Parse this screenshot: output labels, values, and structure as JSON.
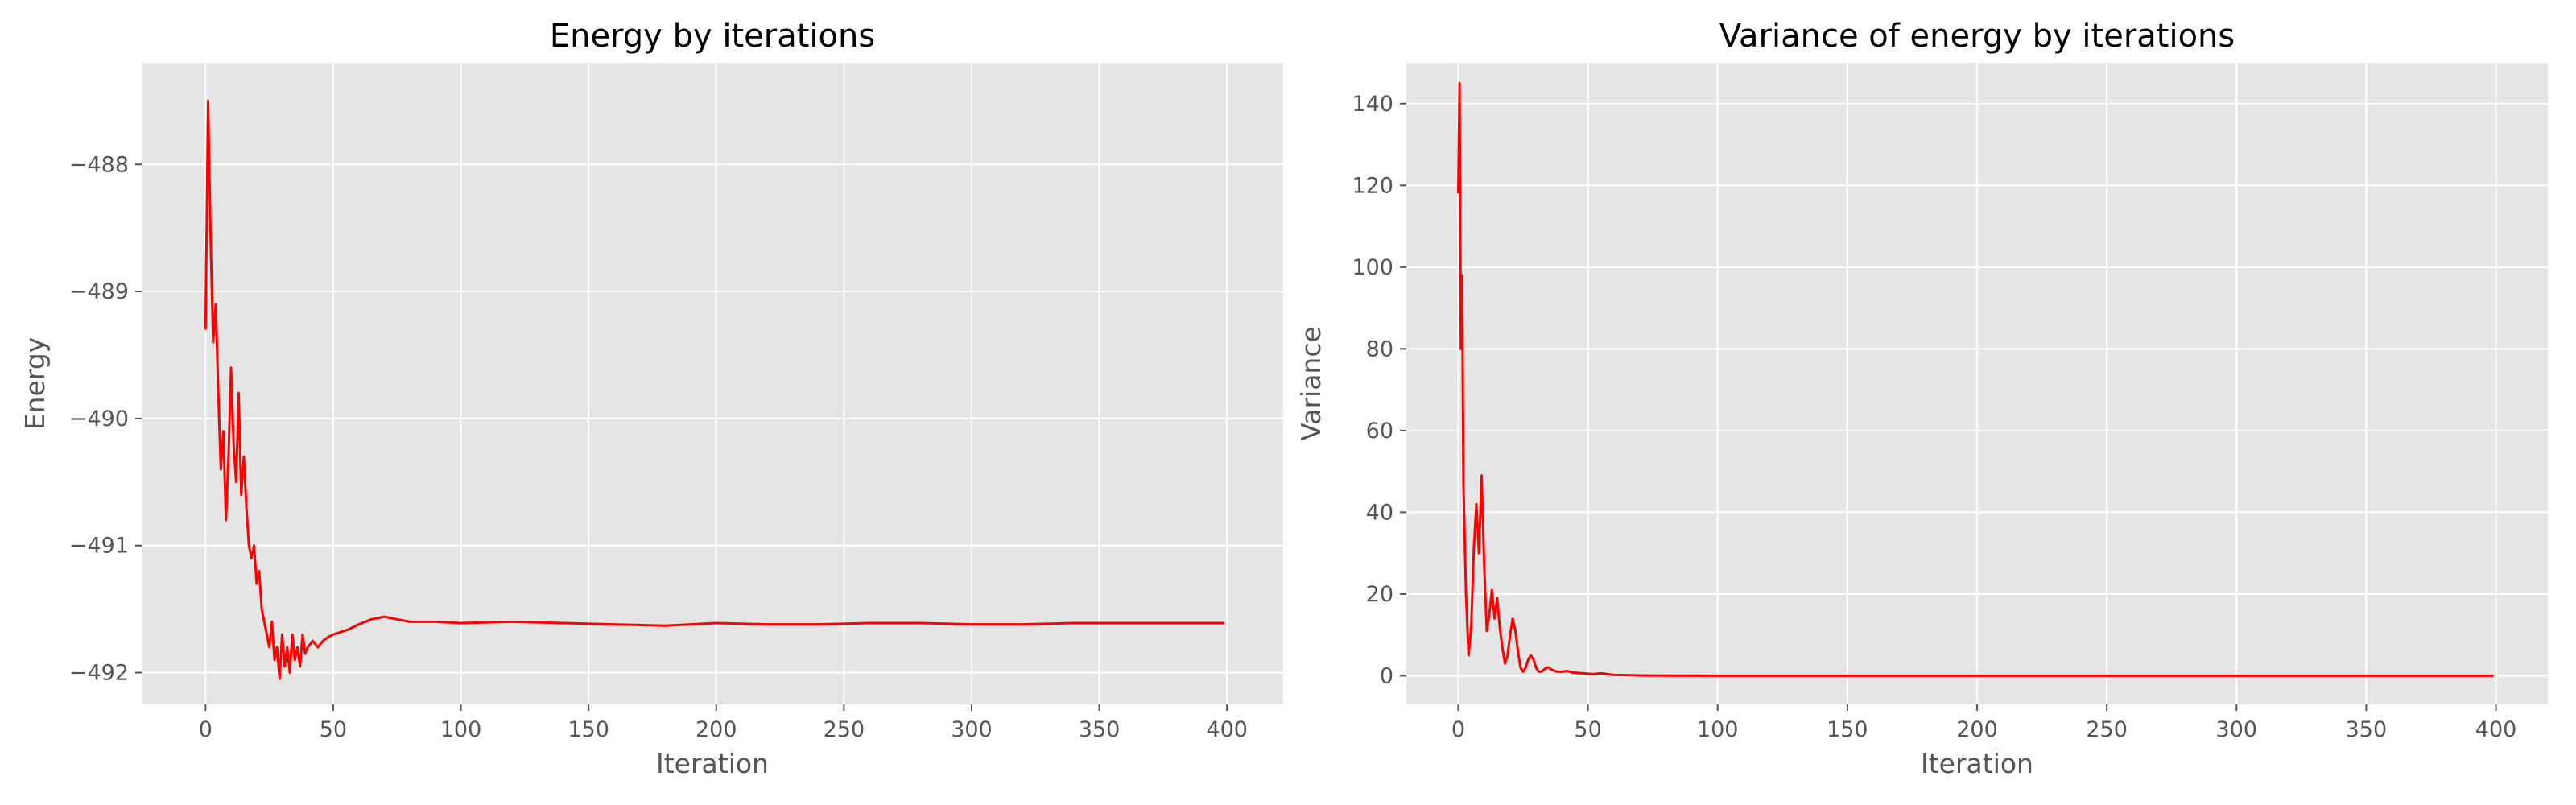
{
  "chart_data": [
    {
      "type": "line",
      "title": "Energy by iterations",
      "xlabel": "Iteration",
      "ylabel": "Energy",
      "xlim": [
        -25,
        422
      ],
      "ylim": [
        -492.25,
        -487.2
      ],
      "xticks": [
        0,
        50,
        100,
        150,
        200,
        250,
        300,
        350,
        400
      ],
      "yticks": [
        -492,
        -491,
        -490,
        -489,
        -488
      ],
      "ytick_labels": [
        "−492",
        "−491",
        "−490",
        "−489",
        "−488"
      ],
      "grid": true,
      "line_color": "#ff0000",
      "background": "#e5e5e5",
      "series": [
        {
          "x": [
            0,
            1,
            2,
            3,
            4,
            5,
            6,
            7,
            8,
            9,
            10,
            11,
            12,
            13,
            14,
            15,
            16,
            17,
            18,
            19,
            20,
            21,
            22,
            23,
            24,
            25,
            26,
            27,
            28,
            29,
            30,
            31,
            32,
            33,
            34,
            35,
            36,
            37,
            38,
            39,
            40,
            42,
            44,
            46,
            48,
            50,
            53,
            56,
            60,
            65,
            70,
            75,
            80,
            90,
            100,
            120,
            140,
            160,
            180,
            200,
            220,
            240,
            260,
            280,
            300,
            320,
            340,
            360,
            380,
            399
          ],
          "y": [
            -489.3,
            -487.5,
            -488.6,
            -489.4,
            -489.1,
            -489.8,
            -490.4,
            -490.1,
            -490.8,
            -490.3,
            -489.6,
            -490.2,
            -490.5,
            -489.8,
            -490.6,
            -490.3,
            -490.7,
            -491.0,
            -491.1,
            -491.0,
            -491.3,
            -491.2,
            -491.5,
            -491.6,
            -491.7,
            -491.8,
            -491.6,
            -491.9,
            -491.8,
            -492.05,
            -491.7,
            -491.95,
            -491.8,
            -492.0,
            -491.7,
            -491.9,
            -491.8,
            -491.95,
            -491.7,
            -491.85,
            -491.8,
            -491.75,
            -491.8,
            -491.75,
            -491.72,
            -491.7,
            -491.68,
            -491.66,
            -491.62,
            -491.58,
            -491.56,
            -491.58,
            -491.6,
            -491.6,
            -491.61,
            -491.6,
            -491.61,
            -491.62,
            -491.63,
            -491.61,
            -491.62,
            -491.62,
            -491.61,
            -491.61,
            -491.62,
            -491.62,
            -491.61,
            -491.61,
            -491.61,
            -491.61
          ]
        }
      ]
    },
    {
      "type": "line",
      "title": "Variance of energy by iterations",
      "xlabel": "Iteration",
      "ylabel": "Variance",
      "xlim": [
        -20,
        420
      ],
      "ylim": [
        -7,
        150
      ],
      "xticks": [
        0,
        50,
        100,
        150,
        200,
        250,
        300,
        350,
        400
      ],
      "yticks": [
        0,
        20,
        40,
        60,
        80,
        100,
        120,
        140
      ],
      "ytick_labels": [
        "0",
        "20",
        "40",
        "60",
        "80",
        "100",
        "120",
        "140"
      ],
      "grid": true,
      "line_color": "#ff0000",
      "background": "#e5e5e5",
      "series": [
        {
          "x": [
            0,
            0.5,
            1,
            1.5,
            2,
            3,
            4,
            5,
            6,
            7,
            8,
            9,
            10,
            11,
            12,
            13,
            14,
            15,
            16,
            17,
            18,
            19,
            20,
            21,
            22,
            23,
            24,
            25,
            26,
            27,
            28,
            29,
            30,
            31,
            32,
            33,
            34,
            35,
            36,
            38,
            40,
            42,
            44,
            46,
            48,
            50,
            52,
            55,
            60,
            70,
            80,
            100,
            150,
            200,
            250,
            300,
            350,
            399
          ],
          "y": [
            118,
            145,
            80,
            98,
            47,
            20,
            5,
            12,
            31,
            42,
            30,
            49,
            27,
            11,
            15,
            21,
            14,
            19,
            12,
            7,
            3,
            5,
            10,
            14,
            11,
            6,
            2,
            1,
            2,
            4,
            5,
            4,
            2,
            1,
            1,
            1.5,
            2,
            2,
            1.5,
            1,
            1,
            1.2,
            0.8,
            0.7,
            0.6,
            0.5,
            0.4,
            0.6,
            0.2,
            0.1,
            0.05,
            0.02,
            0.01,
            0.01,
            0.01,
            0.01,
            0.01,
            0.01
          ]
        }
      ]
    }
  ]
}
